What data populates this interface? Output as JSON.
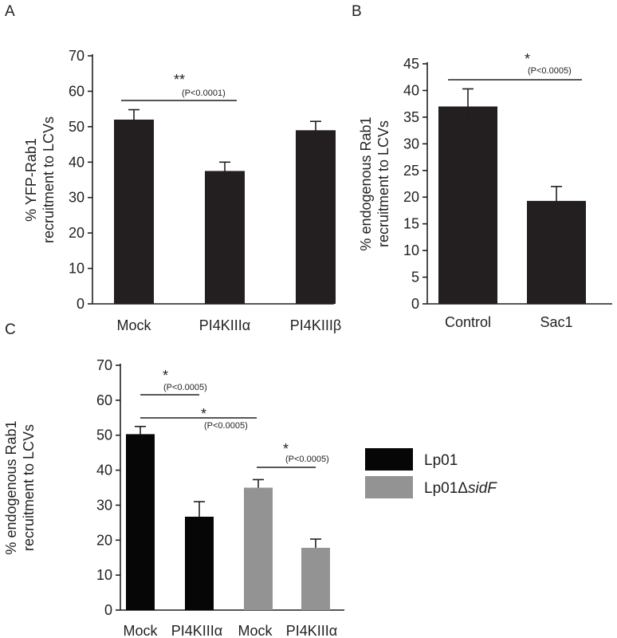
{
  "chart_data": [
    {
      "type": "bar",
      "panel": "A",
      "categories": [
        "Mock",
        "PI4KIIIα",
        "PI4KIIIβ"
      ],
      "values": [
        52,
        37.5,
        49
      ],
      "errors": [
        2.8,
        2.5,
        2.5
      ],
      "ylabel_lines": [
        "% YFP-Rab1",
        "recruitment to LCVs"
      ],
      "xlabel": "",
      "ylim": [
        0,
        70
      ],
      "yticks": [
        0,
        10,
        20,
        30,
        40,
        50,
        60,
        70
      ],
      "bar_color": "#231f20",
      "significance": [
        {
          "from": 0,
          "to": 1,
          "stars": "**",
          "p": "(P<0.0001)"
        }
      ]
    },
    {
      "type": "bar",
      "panel": "B",
      "categories": [
        "Control",
        "Sac1"
      ],
      "values": [
        37,
        19.3
      ],
      "errors": [
        3.3,
        2.7
      ],
      "ylabel_lines": [
        "% endogenous Rab1",
        "recruitment to LCVs"
      ],
      "xlabel": "",
      "ylim": [
        0,
        45
      ],
      "yticks": [
        0,
        5,
        10,
        15,
        20,
        25,
        30,
        35,
        40,
        45
      ],
      "bar_color": "#231f20",
      "significance": [
        {
          "from": 0,
          "to": 1,
          "stars": "*",
          "p": "(P<0.0005)"
        }
      ]
    },
    {
      "type": "bar",
      "panel": "C",
      "categories": [
        "Mock",
        "PI4KIIIα",
        "Mock",
        "PI4KIIIα"
      ],
      "values": [
        50.3,
        26.7,
        35,
        17.8
      ],
      "errors": [
        2.2,
        4.3,
        2.3,
        2.5
      ],
      "bar_colors": [
        "#060606",
        "#060606",
        "#939393",
        "#939393"
      ],
      "ylabel_lines": [
        "% endogenous Rab1",
        "recruitment to LCVs"
      ],
      "xlabel": "",
      "ylim": [
        0,
        70
      ],
      "yticks": [
        0,
        10,
        20,
        30,
        40,
        50,
        60,
        70
      ],
      "significance": [
        {
          "from": 0,
          "to": 1,
          "stars": "*",
          "p": "(P<0.0005)"
        },
        {
          "from": 0,
          "to": 2,
          "stars": "*",
          "p": "(P<0.0005)"
        },
        {
          "from": 2,
          "to": 3,
          "stars": "*",
          "p": "(P<0.0005)"
        }
      ],
      "legend": {
        "position": "right",
        "entries": [
          {
            "prefix": "Lp01",
            "italic": "",
            "color": "#060606"
          },
          {
            "prefix": "Lp01Δ",
            "italic": "sidF",
            "color": "#939393"
          }
        ]
      }
    }
  ]
}
